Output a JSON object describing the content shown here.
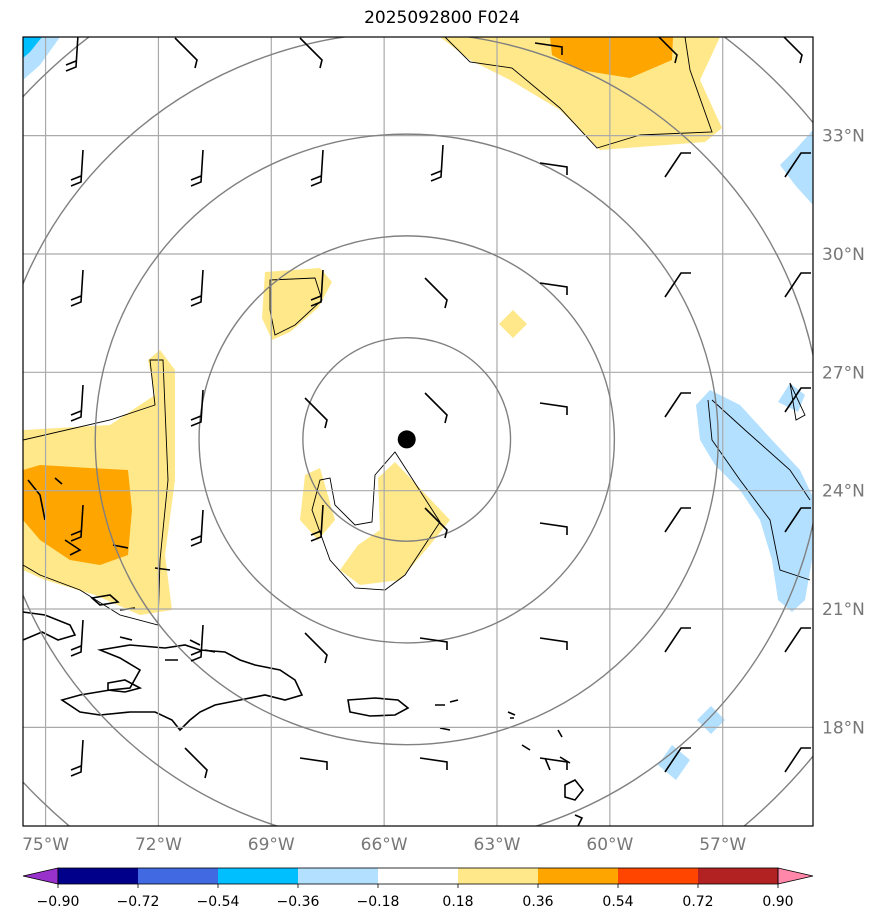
{
  "title": "2025092800 F024",
  "map": {
    "lon_range": [
      -75.6,
      -54.6
    ],
    "lat_range": [
      15.5,
      35.5
    ],
    "lon_ticks": [
      {
        "value": -75,
        "label": "75°W"
      },
      {
        "value": -72,
        "label": "72°W"
      },
      {
        "value": -69,
        "label": "69°W"
      },
      {
        "value": -66,
        "label": "66°W"
      },
      {
        "value": -63,
        "label": "63°W"
      },
      {
        "value": -60,
        "label": "60°W"
      },
      {
        "value": -57,
        "label": "57°W"
      }
    ],
    "lat_ticks": [
      {
        "value": 18,
        "label": "18°N"
      },
      {
        "value": 21,
        "label": "21°N"
      },
      {
        "value": 24,
        "label": "24°N"
      },
      {
        "value": 27,
        "label": "27°N"
      },
      {
        "value": 30,
        "label": "30°N"
      },
      {
        "value": 33,
        "label": "33°N"
      }
    ],
    "grid": true,
    "center": {
      "lon": -65.4,
      "lat": 25.3,
      "marker": "filled-circle"
    },
    "range_rings_deg": [
      3,
      6,
      9,
      12,
      15
    ]
  },
  "colorbar": {
    "levels": [
      "-0.90",
      "-0.72",
      "-0.54",
      "-0.36",
      "-0.18",
      "0.18",
      "0.36",
      "0.54",
      "0.72",
      "0.90"
    ],
    "colors": [
      "#9932cc",
      "#00008b",
      "#4169e1",
      "#00bfff",
      "#b3e0ff",
      "#ffffff",
      "#ffe88a",
      "#ffa500",
      "#ff4500",
      "#b22222",
      "#ff88aa"
    ],
    "extend": "both"
  },
  "colors": {
    "grid": "#aaaaaa",
    "rings": "#808080",
    "coast": "#000000",
    "tick_label": "#777777"
  }
}
